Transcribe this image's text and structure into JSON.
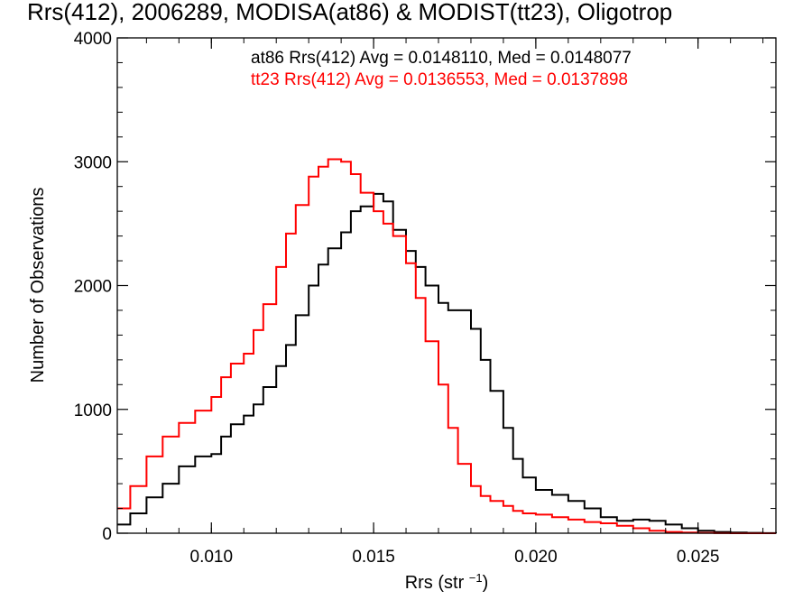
{
  "chart_data": {
    "type": "line",
    "title": "Rrs(412), 2006289, MODISA(at86) & MODIST(tt23), Oligotrop",
    "xlabel": "Rrs (str",
    "xlabel_sup": "−1",
    "xlabel_close": ")",
    "ylabel": "Number of Observations",
    "xlim": [
      0.0071,
      0.0274
    ],
    "ylim": [
      0,
      4000
    ],
    "x_ticks": [
      {
        "value": 0.01,
        "label": "0.010"
      },
      {
        "value": 0.015,
        "label": "0.015"
      },
      {
        "value": 0.02,
        "label": "0.020"
      },
      {
        "value": 0.025,
        "label": "0.025"
      }
    ],
    "y_ticks": [
      {
        "value": 0,
        "label": "0"
      },
      {
        "value": 1000,
        "label": "1000"
      },
      {
        "value": 2000,
        "label": "2000"
      },
      {
        "value": 3000,
        "label": "3000"
      },
      {
        "value": 4000,
        "label": "4000"
      }
    ],
    "annotations": [
      {
        "text": "at86 Rrs(412) Avg = 0.0148110, Med = 0.0148077",
        "color": "#000000"
      },
      {
        "text": "tt23 Rrs(412) Avg = 0.0136553, Med = 0.0137898",
        "color": "#ff0000"
      }
    ],
    "series": [
      {
        "color": "#000000",
        "x": [
          0.0071,
          0.0075,
          0.008,
          0.0085,
          0.009,
          0.0095,
          0.01,
          0.0103,
          0.0106,
          0.011,
          0.0113,
          0.0116,
          0.012,
          0.0123,
          0.0126,
          0.013,
          0.0133,
          0.0136,
          0.014,
          0.0143,
          0.0146,
          0.015,
          0.0153,
          0.0156,
          0.016,
          0.0163,
          0.0166,
          0.017,
          0.0173,
          0.0176,
          0.018,
          0.0183,
          0.0186,
          0.019,
          0.0193,
          0.0196,
          0.02,
          0.0205,
          0.021,
          0.0215,
          0.022,
          0.0225,
          0.023,
          0.0235,
          0.024,
          0.0245,
          0.025,
          0.0255,
          0.026,
          0.0265,
          0.027,
          0.0274
        ],
        "y": [
          70,
          160,
          290,
          400,
          540,
          620,
          640,
          780,
          880,
          950,
          1040,
          1180,
          1350,
          1520,
          1760,
          2000,
          2170,
          2300,
          2430,
          2600,
          2640,
          2740,
          2680,
          2450,
          2280,
          2150,
          2000,
          1860,
          1800,
          1800,
          1650,
          1400,
          1150,
          850,
          600,
          450,
          350,
          310,
          260,
          200,
          130,
          100,
          110,
          100,
          70,
          40,
          20,
          10,
          5,
          3,
          1,
          0
        ]
      },
      {
        "color": "#ff0000",
        "x": [
          0.0071,
          0.0075,
          0.008,
          0.0085,
          0.009,
          0.0095,
          0.01,
          0.0103,
          0.0106,
          0.011,
          0.0113,
          0.0116,
          0.012,
          0.0123,
          0.0126,
          0.013,
          0.0133,
          0.0136,
          0.014,
          0.0143,
          0.0146,
          0.015,
          0.0153,
          0.0156,
          0.016,
          0.0163,
          0.0166,
          0.017,
          0.0173,
          0.0176,
          0.018,
          0.0183,
          0.0186,
          0.019,
          0.0193,
          0.0196,
          0.02,
          0.0205,
          0.021,
          0.0215,
          0.022,
          0.0225,
          0.023,
          0.0235,
          0.024,
          0.0245,
          0.025,
          0.0255,
          0.026,
          0.0265,
          0.027,
          0.0274
        ],
        "y": [
          200,
          380,
          620,
          780,
          890,
          990,
          1100,
          1260,
          1370,
          1450,
          1640,
          1850,
          2150,
          2420,
          2650,
          2880,
          2960,
          3020,
          3000,
          2900,
          2750,
          2600,
          2500,
          2400,
          2180,
          1900,
          1550,
          1200,
          850,
          560,
          380,
          300,
          260,
          220,
          180,
          160,
          150,
          130,
          110,
          90,
          80,
          60,
          40,
          20,
          10,
          5,
          3,
          1,
          0,
          0,
          0,
          0
        ]
      }
    ]
  }
}
